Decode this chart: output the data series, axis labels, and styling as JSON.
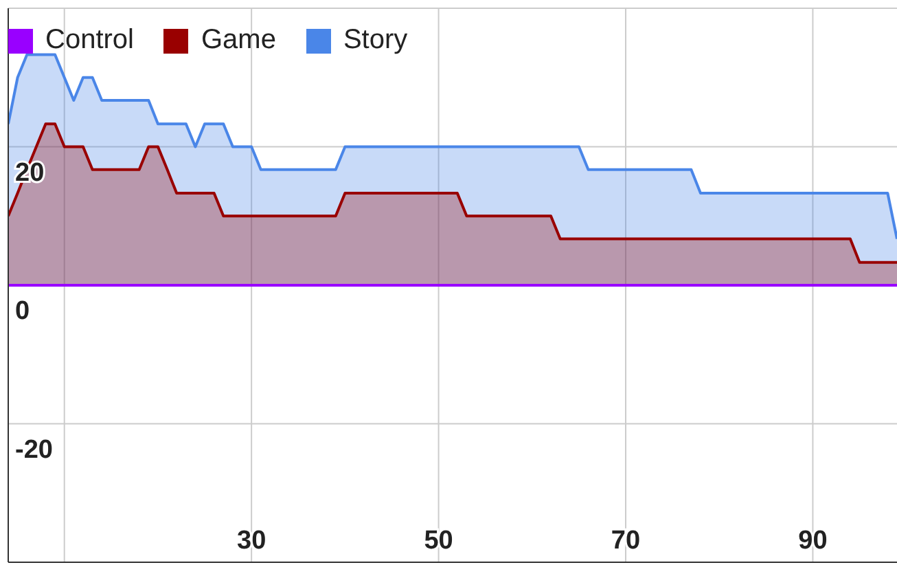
{
  "chart_data": {
    "type": "area",
    "x": [
      4,
      5,
      6,
      7,
      8,
      9,
      10,
      11,
      12,
      13,
      14,
      15,
      16,
      17,
      18,
      19,
      20,
      21,
      22,
      23,
      24,
      25,
      26,
      27,
      28,
      29,
      30,
      31,
      32,
      33,
      34,
      35,
      36,
      37,
      38,
      39,
      40,
      41,
      42,
      43,
      44,
      45,
      46,
      47,
      48,
      49,
      50,
      51,
      52,
      53,
      54,
      55,
      56,
      57,
      58,
      59,
      60,
      61,
      62,
      63,
      64,
      65,
      66,
      67,
      68,
      69,
      70,
      71,
      72,
      73,
      74,
      75,
      76,
      77,
      78,
      79,
      80,
      81,
      82,
      83,
      84,
      85,
      86,
      87,
      88,
      89,
      90,
      91,
      92,
      93,
      94,
      95,
      96,
      97,
      98,
      99
    ],
    "series": [
      {
        "name": "Control",
        "type": "line",
        "color": "#9900ff",
        "values": [
          0,
          0,
          0,
          0,
          0,
          0,
          0,
          0,
          0,
          0,
          0,
          0,
          0,
          0,
          0,
          0,
          0,
          0,
          0,
          0,
          0,
          0,
          0,
          0,
          0,
          0,
          0,
          0,
          0,
          0,
          0,
          0,
          0,
          0,
          0,
          0,
          0,
          0,
          0,
          0,
          0,
          0,
          0,
          0,
          0,
          0,
          0,
          0,
          0,
          0,
          0,
          0,
          0,
          0,
          0,
          0,
          0,
          0,
          0,
          0,
          0,
          0,
          0,
          0,
          0,
          0,
          0,
          0,
          0,
          0,
          0,
          0,
          0,
          0,
          0,
          0,
          0,
          0,
          0,
          0,
          0,
          0,
          0,
          0,
          0,
          0,
          0,
          0,
          0,
          0,
          0,
          0,
          0,
          0,
          0,
          0
        ]
      },
      {
        "name": "Game",
        "color": "#990000",
        "values": [
          10,
          13.3,
          16.7,
          20,
          23.3,
          23.3,
          20,
          20,
          20,
          16.7,
          16.7,
          16.7,
          16.7,
          16.7,
          16.7,
          20,
          20,
          16.7,
          13.3,
          13.3,
          13.3,
          13.3,
          13.3,
          10,
          10,
          10,
          10,
          10,
          10,
          10,
          10,
          10,
          10,
          10,
          10,
          10,
          13.3,
          13.3,
          13.3,
          13.3,
          13.3,
          13.3,
          13.3,
          13.3,
          13.3,
          13.3,
          13.3,
          13.3,
          13.3,
          10,
          10,
          10,
          10,
          10,
          10,
          10,
          10,
          10,
          10,
          6.7,
          6.7,
          6.7,
          6.7,
          6.7,
          6.7,
          6.7,
          6.7,
          6.7,
          6.7,
          6.7,
          6.7,
          6.7,
          6.7,
          6.7,
          6.7,
          6.7,
          6.7,
          6.7,
          6.7,
          6.7,
          6.7,
          6.7,
          6.7,
          6.7,
          6.7,
          6.7,
          6.7,
          6.7,
          6.7,
          6.7,
          6.7,
          3.3,
          3.3,
          3.3,
          3.3,
          3.3
        ]
      },
      {
        "name": "Story",
        "color": "#4a86e8",
        "values": [
          23.3,
          30,
          33.3,
          33.3,
          33.3,
          33.3,
          30,
          26.7,
          30,
          30,
          26.7,
          26.7,
          26.7,
          26.7,
          26.7,
          26.7,
          23.3,
          23.3,
          23.3,
          23.3,
          20,
          23.3,
          23.3,
          23.3,
          20,
          20,
          20,
          16.7,
          16.7,
          16.7,
          16.7,
          16.7,
          16.7,
          16.7,
          16.7,
          16.7,
          20,
          20,
          20,
          20,
          20,
          20,
          20,
          20,
          20,
          20,
          20,
          20,
          20,
          20,
          20,
          20,
          20,
          20,
          20,
          20,
          20,
          20,
          20,
          20,
          20,
          20,
          16.7,
          16.7,
          16.7,
          16.7,
          16.7,
          16.7,
          16.7,
          16.7,
          16.7,
          16.7,
          16.7,
          16.7,
          13.3,
          13.3,
          13.3,
          13.3,
          13.3,
          13.3,
          13.3,
          13.3,
          13.3,
          13.3,
          13.3,
          13.3,
          13.3,
          13.3,
          13.3,
          13.3,
          13.3,
          13.3,
          13.3,
          13.3,
          13.3,
          6.7
        ]
      }
    ],
    "xlim": [
      4,
      99
    ],
    "xticks": [
      {
        "value": 10,
        "label": null
      },
      30,
      50,
      70,
      90
    ],
    "ylim": [
      -40,
      40
    ],
    "yticks": [
      {
        "value": -40,
        "label": null
      },
      -20,
      0,
      20,
      {
        "value": 40,
        "label": null
      }
    ],
    "grid": true,
    "legend": "top left"
  }
}
